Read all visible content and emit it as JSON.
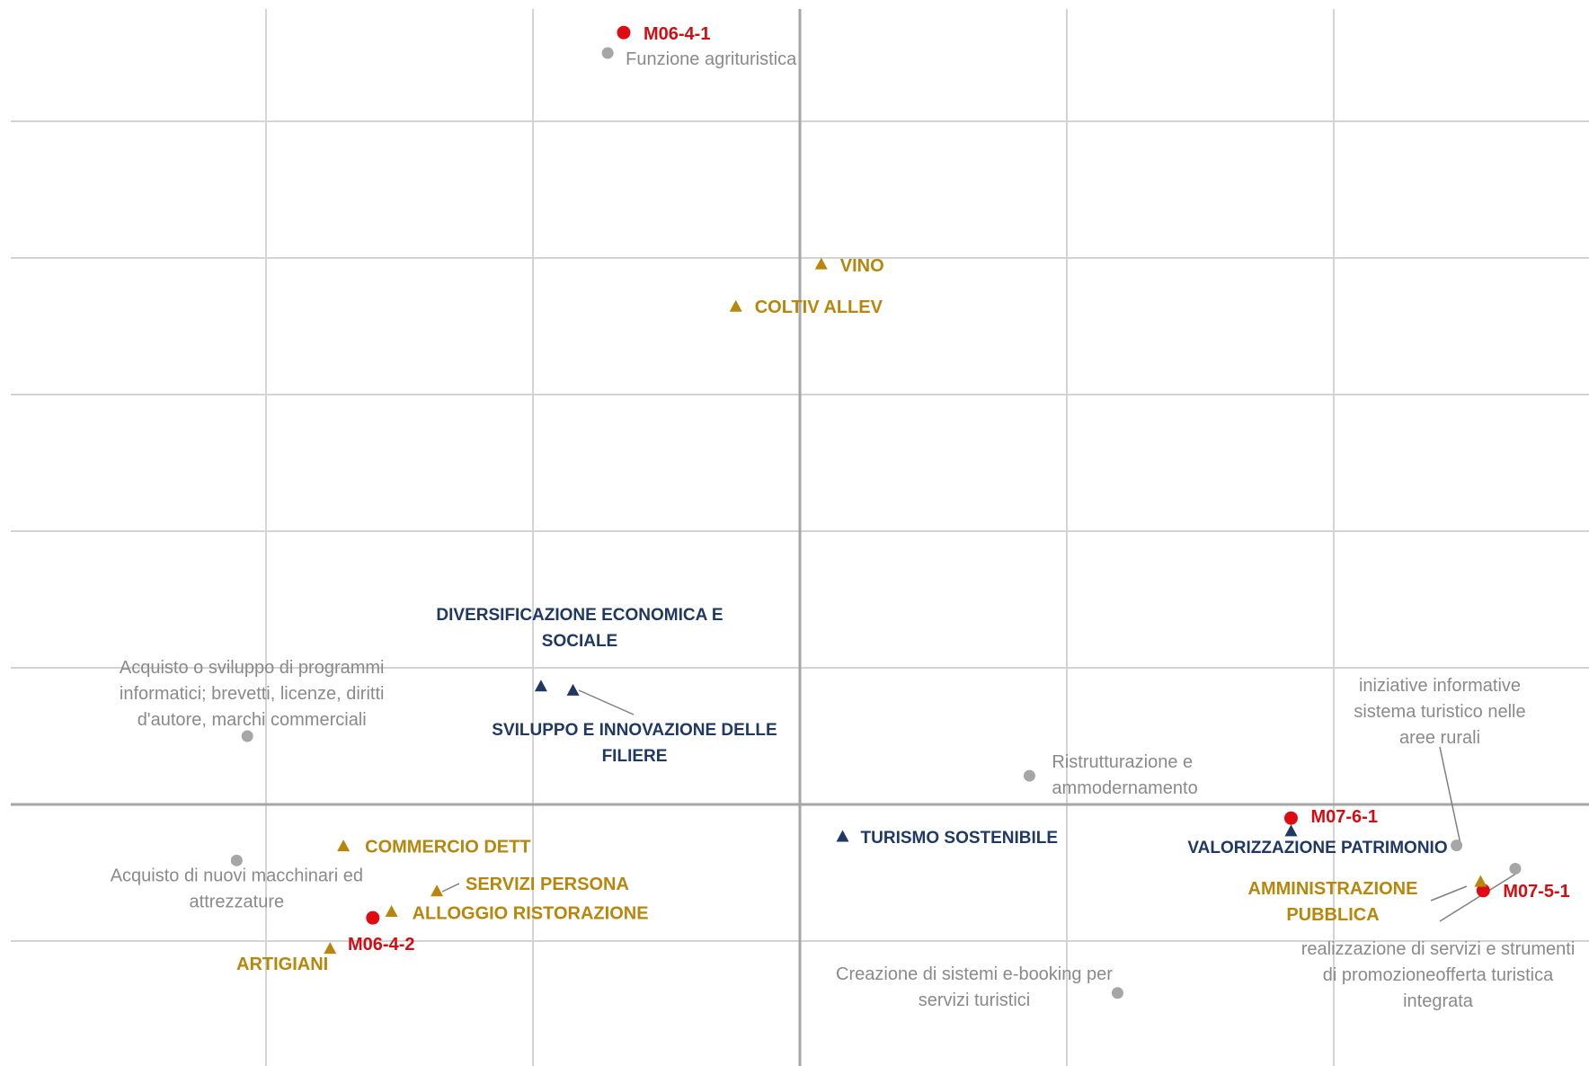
{
  "colors": {
    "grid": "#d4d4d4",
    "axis": "#a6a6a6",
    "gray": "#a6a6a6",
    "gray_text": "#8a8a8a",
    "red": "#e00b12",
    "red_text": "#d40d12",
    "gold": "#b8860b",
    "navy": "#1f3864",
    "leader": "#7f7f7f"
  },
  "chart_data": {
    "type": "scatter",
    "title": "",
    "xlabel": "",
    "ylabel": "",
    "xlim": [
      -3,
      3
    ],
    "ylim": [
      -1.75,
      5.8
    ],
    "grid": true,
    "legend": "none",
    "series": [
      {
        "kind": "gray-circle",
        "points": [
          {
            "x": -0.72,
            "y": 5.5,
            "lines": [
              "Funzione agrituristica"
            ]
          },
          {
            "x": -2.07,
            "y": 0.5,
            "lines": [
              "Acquisto o sviluppo di programmi",
              "informatici; brevetti, licenze, diritti",
              "d'autore, marchi commerciali"
            ]
          },
          {
            "x": -2.11,
            "y": -0.41,
            "lines": [
              "Acquisto di nuovi macchinari ed",
              "attrezzature"
            ]
          },
          {
            "x": 0.86,
            "y": 0.21,
            "lines": [
              "Ristrutturazione e",
              "ammodernamento"
            ]
          },
          {
            "x": 2.46,
            "y": -0.3,
            "lines": [
              "iniziative informative",
              "sistema turistico nelle",
              "aree rurali"
            ]
          },
          {
            "x": 2.68,
            "y": -0.47,
            "lines": [
              "realizzazione di servizi e strumenti",
              "di promozioneofferta turistica",
              "integrata"
            ]
          },
          {
            "x": 1.19,
            "y": -1.38,
            "lines": [
              "Creazione di sistemi e-booking per",
              "servizi turistici"
            ]
          }
        ]
      },
      {
        "kind": "red-circle",
        "points": [
          {
            "x": -0.66,
            "y": 5.65,
            "label": "M06-4-1"
          },
          {
            "x": 1.84,
            "y": -0.1,
            "label": "M07-6-1"
          },
          {
            "x": 2.56,
            "y": -0.63,
            "label": "M07-5-1"
          },
          {
            "x": -1.6,
            "y": -0.83,
            "label": "M06-4-2"
          }
        ]
      },
      {
        "kind": "gold-triangle",
        "points": [
          {
            "x": 0.08,
            "y": 3.96,
            "label": "VINO"
          },
          {
            "x": -0.24,
            "y": 3.65,
            "label": "COLTIV ALLEV"
          },
          {
            "x": -1.71,
            "y": -0.3,
            "label": "COMMERCIO  DETT"
          },
          {
            "x": -1.36,
            "y": -0.63,
            "label": "SERVIZI PERSONA"
          },
          {
            "x": -1.53,
            "y": -0.78,
            "label": "ALLOGGIO RISTORAZIONE"
          },
          {
            "x": -1.76,
            "y": -1.05,
            "label": "ARTIGIANI"
          },
          {
            "x": 2.55,
            "y": -0.56,
            "lines": [
              "AMMINISTRAZIONE",
              "PUBBLICA"
            ]
          }
        ]
      },
      {
        "kind": "navy-triangle",
        "points": [
          {
            "x": -0.97,
            "y": 0.87,
            "lines": [
              "DIVERSIFICAZIONE ECONOMICA E",
              "SOCIALE"
            ]
          },
          {
            "x": -0.85,
            "y": 0.84,
            "lines": [
              "SVILUPPO E INNOVAZIONE DELLE",
              "FILIERE"
            ]
          },
          {
            "x": 0.16,
            "y": -0.23,
            "label": "TURISMO SOSTENIBILE"
          },
          {
            "x": 1.84,
            "y": -0.19,
            "label": "VALORIZZAZIONE PATRIMONIO"
          }
        ]
      }
    ]
  }
}
